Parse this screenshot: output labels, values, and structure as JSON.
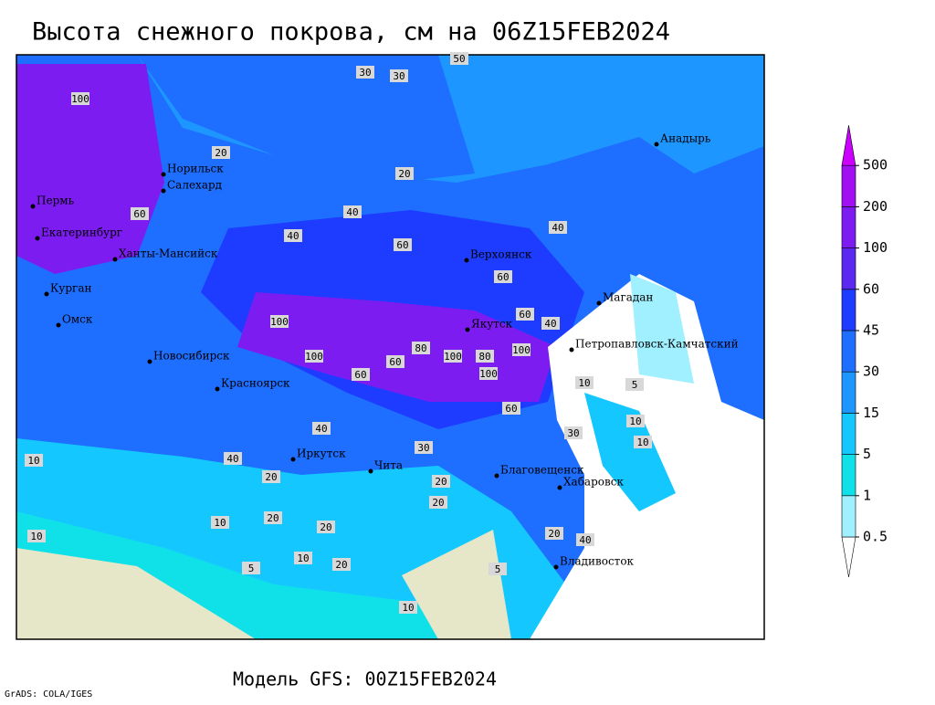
{
  "title": "Высота снежного покрова, см на 06Z15FEB2024",
  "subtitle": "Модель GFS: 00Z15FEB2024",
  "credit": "GrADS: COLA/IGES",
  "legend": {
    "levels": [
      0.5,
      1,
      5,
      15,
      30,
      45,
      60,
      100,
      200,
      500
    ],
    "colors": [
      "#ffffff",
      "#a0f0ff",
      "#10e0e8",
      "#14c8ff",
      "#1e96ff",
      "#1e6eff",
      "#1e3cff",
      "#5a28f0",
      "#7d1cf0",
      "#a010f0",
      "#cc00ff"
    ]
  },
  "cities": [
    "Норильск",
    "Салехард",
    "Пермь",
    "Екатеринбург",
    "Ханты-Мансийск",
    "Курган",
    "Омск",
    "Новосибирск",
    "Красноярск",
    "Иркутск",
    "Чита",
    "Верхоянск",
    "Якутск",
    "Магадан",
    "Анадырь",
    "Петропавловск-Камчатский",
    "Благовещенск",
    "Хабаровск",
    "Владивосток"
  ],
  "map_labels": [
    30,
    30,
    20,
    50,
    100,
    60,
    40,
    20,
    40,
    100,
    60,
    40,
    60,
    60,
    40,
    60,
    100,
    80,
    60,
    100,
    80,
    100,
    100,
    60,
    40,
    20,
    10,
    40,
    30,
    10,
    20,
    10,
    20,
    10,
    20,
    5,
    10,
    20,
    5,
    20,
    30,
    20,
    40,
    10,
    10,
    5,
    10
  ]
}
